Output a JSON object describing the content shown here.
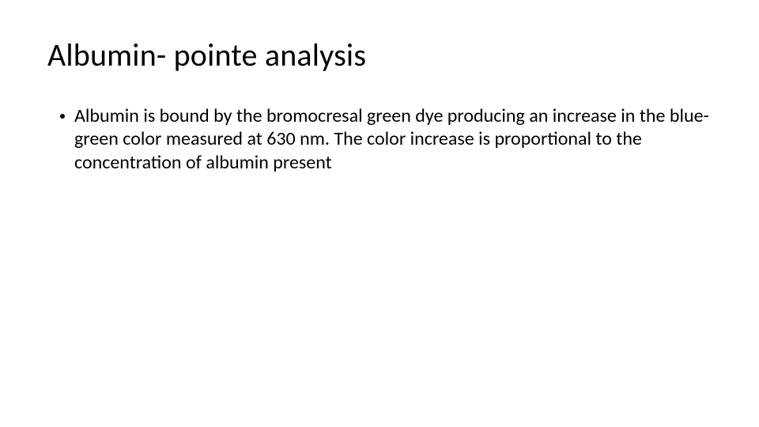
{
  "colors": {
    "background": "#ffffff",
    "text": "#000000",
    "bullet": "#000000"
  },
  "typography": {
    "title_font": "Calibri Light",
    "title_size_pt": 40,
    "title_weight": 300,
    "body_font": "Calibri",
    "body_size_pt": 24,
    "body_weight": 400,
    "line_height": 1.22
  },
  "slide": {
    "title": "Albumin- pointe analysis",
    "bullets": [
      "Albumin is bound by the bromocresal green dye producing an increase in the blue-green color measured at 630 nm. The color increase is proportional to the concentration of albumin present"
    ]
  }
}
